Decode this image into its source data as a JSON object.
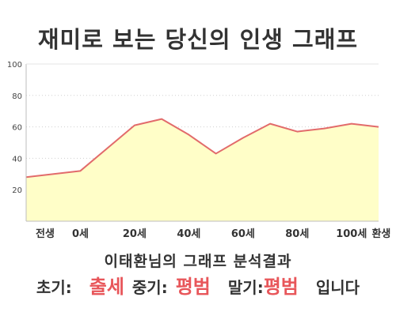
{
  "title": "재미로 보는 당신의 인생 그래프",
  "chart_data": {
    "type": "area",
    "categories": [
      "전생",
      "0세",
      "20세",
      "40세",
      "60세",
      "80세",
      "100세",
      "환생"
    ],
    "x": [
      -20,
      0,
      20,
      30,
      40,
      50,
      60,
      70,
      80,
      90,
      100,
      110
    ],
    "values": [
      28,
      32,
      61,
      65,
      55,
      43,
      53,
      62,
      57,
      59,
      62,
      60
    ],
    "y_ticks": [
      "20",
      "40",
      "60",
      "80",
      "100"
    ],
    "ylim": [
      0,
      100
    ],
    "series_color": "#e26b6b",
    "fill_color": "#fffec8",
    "grid": true,
    "legend": "none"
  },
  "summary": {
    "heading": "이태환님의 그래프 분석결과",
    "early_label": "초기:",
    "early_value": "출세",
    "mid_label": "중기:",
    "mid_value": "평범",
    "late_label": "말기:",
    "late_value": "평범",
    "ending": "입니다"
  }
}
